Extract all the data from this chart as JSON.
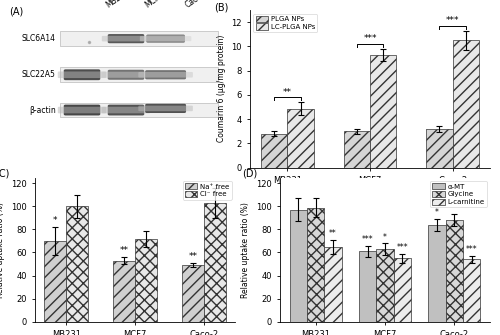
{
  "panel_B": {
    "categories": [
      "MB231",
      "MCF7",
      "Caco-2"
    ],
    "PLGA_NPs": [
      2.8,
      3.0,
      3.2
    ],
    "PLGA_NPs_err": [
      0.2,
      0.2,
      0.25
    ],
    "LC_PLGA_NPs": [
      4.85,
      9.3,
      10.5
    ],
    "LC_PLGA_NPs_err": [
      0.55,
      0.5,
      0.8
    ],
    "ylabel": "Coumarin 6 (μg/mg protein)",
    "ylim": [
      0,
      13
    ],
    "yticks": [
      0,
      2,
      4,
      6,
      8,
      10,
      12
    ],
    "sig_labels": [
      "**",
      "***",
      "***"
    ],
    "legend": [
      "PLGA NPs",
      "LC-PLGA NPs"
    ]
  },
  "panel_C": {
    "categories": [
      "MB231",
      "MCF7",
      "Caco-2"
    ],
    "Na_free": [
      70,
      53,
      49
    ],
    "Na_free_err": [
      12,
      3,
      2
    ],
    "Cl_free": [
      100,
      72,
      103
    ],
    "Cl_free_err": [
      10,
      7,
      13
    ],
    "ylabel": "Relative uptake ratio (%)",
    "ylim": [
      0,
      125
    ],
    "yticks": [
      0,
      20,
      40,
      60,
      80,
      100,
      120
    ],
    "Na_sig": [
      "*",
      "**",
      "**"
    ],
    "Cl_sig": [
      "",
      "",
      ""
    ],
    "legend": [
      "Na⁺ free",
      "Cl⁻ free"
    ]
  },
  "panel_D": {
    "categories": [
      "MB231",
      "MCF7",
      "Caco-2"
    ],
    "aMT": [
      97,
      61,
      84
    ],
    "aMT_err": [
      10,
      5,
      5
    ],
    "Glycine": [
      99,
      63,
      88
    ],
    "Glycine_err": [
      8,
      5,
      5
    ],
    "L_carnitine": [
      65,
      55,
      54
    ],
    "L_carnitine_err": [
      6,
      4,
      3
    ],
    "ylabel": "Relative uptake ratio (%)",
    "ylim": [
      0,
      125
    ],
    "yticks": [
      0,
      20,
      40,
      60,
      80,
      100,
      120
    ],
    "aMT_sig": [
      "",
      "***",
      "*"
    ],
    "Glycine_sig": [
      "",
      "*",
      ""
    ],
    "LC_sig": [
      "**",
      "***",
      "***"
    ],
    "legend": [
      "α-MT",
      "Glycine",
      "L-carnitine"
    ]
  }
}
